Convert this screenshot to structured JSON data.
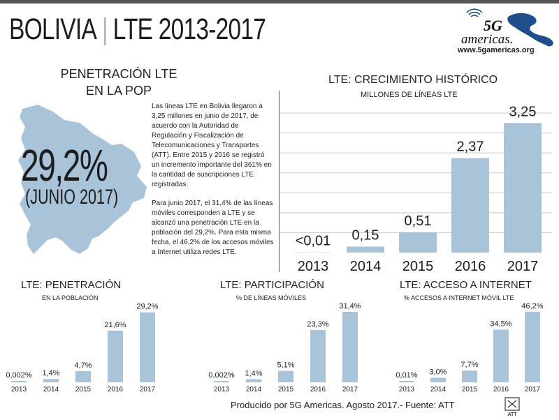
{
  "header": {
    "country": "BOLIVIA",
    "separator": "|",
    "subtitle": "LTE 2013-2017",
    "logo_text": "5G americas",
    "logo_url": "www.5gamericas.org"
  },
  "penetration_summary": {
    "title_line1": "PENETRACIÓN LTE",
    "title_line2": "EN LA POP",
    "value": "29,2%",
    "date": "(JUNIO 2017)",
    "paragraph1": "Las líneas LTE en Bolivia llegaron a 3,25 millones en junio de 2017, de acuerdo con la Autoridad de Regulación y Fiscalización de Telecomunicaciones y Transportes (ATT). Entre 2015 y 2016 se registró un incremento importante del 361% en la cantidad de suscripciones LTE registradas.",
    "paragraph2": "Para junio 2017, el 31,4% de las líneas móviles corresponden a LTE y se alcanzó una penetración LTE en la población del 29,2%. Para esta misma fecha, el 46,2% de los accesos móviles a Internet utiliza redes LTE."
  },
  "colors": {
    "bar": "#a9c4d9",
    "map": "#a9c4d9",
    "grid": "#c9c9c9",
    "logo_blue": "#1f4e8c"
  },
  "footer": {
    "text": "Producido por 5G Americas. Agosto 2017.- Fuente: ATT",
    "source_logo": "ATT"
  },
  "chart_data": [
    {
      "id": "growth",
      "type": "bar",
      "title": "LTE: CRECIMIENTO HISTÓRICO",
      "subtitle": "MILLONES DE LÍNEAS LTE",
      "categories": [
        "2013",
        "2014",
        "2015",
        "2016",
        "2017"
      ],
      "values": [
        0.005,
        0.15,
        0.51,
        2.37,
        3.25
      ],
      "labels": [
        "<0,01",
        "0,15",
        "0,51",
        "2,37",
        "3,25"
      ],
      "ylim": [
        0,
        3.5
      ],
      "grid": true
    },
    {
      "id": "penetration",
      "type": "bar",
      "title": "LTE: PENETRACIÓN",
      "subtitle": "EN LA POBLACIÓN",
      "categories": [
        "2013",
        "2014",
        "2015",
        "2016",
        "2017"
      ],
      "values": [
        0.002,
        1.4,
        4.7,
        21.6,
        29.2
      ],
      "labels": [
        "0,002%",
        "1,4%",
        "4,7%",
        "21,6%",
        "29,2%"
      ],
      "ylim": [
        0,
        30
      ],
      "grid": false
    },
    {
      "id": "share",
      "type": "bar",
      "title": "LTE: PARTICIPACIÓN",
      "subtitle": "% DE LÍNEAS MÓVILES",
      "categories": [
        "2013",
        "2014",
        "2015",
        "2016",
        "2017"
      ],
      "values": [
        0.002,
        1.4,
        5.1,
        23.3,
        31.4
      ],
      "labels": [
        "0,002%",
        "1,4%",
        "5,1%",
        "23,3%",
        "31,4%"
      ],
      "ylim": [
        0,
        32
      ],
      "grid": false
    },
    {
      "id": "internet",
      "type": "bar",
      "title": "LTE: ACCESO A INTERNET",
      "subtitle": "% ACCESOS A INTERNET MÓVIL LTE",
      "categories": [
        "2013",
        "2014",
        "2015",
        "2016",
        "2017"
      ],
      "values": [
        0.01,
        3.0,
        7.7,
        34.5,
        46.2
      ],
      "labels": [
        "0,01%",
        "3,0%",
        "7,7%",
        "34,5%",
        "46,2%"
      ],
      "ylim": [
        0,
        47
      ],
      "grid": false
    }
  ]
}
